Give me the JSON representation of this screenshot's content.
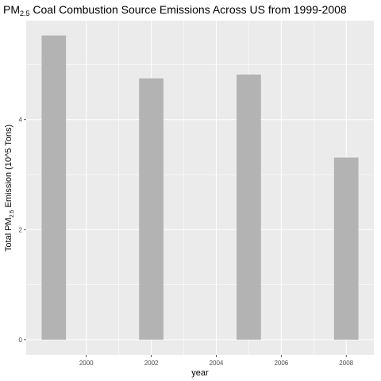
{
  "chart_data": {
    "type": "bar",
    "title": {
      "prefix": "PM",
      "subscript": "2.5",
      "suffix": " Coal Combustion Source Emissions Across US from 1999-2008"
    },
    "xlabel": "year",
    "ylabel": {
      "prefix": "Total PM",
      "subscript": "2.5",
      "suffix": " Emission (10^5 Tons)"
    },
    "x": [
      1999,
      2002,
      2005,
      2008
    ],
    "values": [
      5.53,
      4.75,
      4.82,
      3.31
    ],
    "xlim": [
      1998.15,
      2008.85
    ],
    "ylim": [
      -0.276,
      5.8
    ],
    "x_ticks": [
      2000,
      2002,
      2004,
      2006,
      2008
    ],
    "x_tick_labels": [
      "2000",
      "2002",
      "2004",
      "2006",
      "2008"
    ],
    "y_ticks": [
      0,
      2,
      4
    ],
    "y_tick_labels": [
      "0",
      "2",
      "4"
    ],
    "bar_width_years": 0.75,
    "grid": true,
    "colors": {
      "panel_background": "#ebebeb",
      "bar_fill": "#b3b3b3",
      "grid": "#ffffff",
      "tick_text": "#4d4d4d",
      "tick_mark": "#333333"
    }
  }
}
